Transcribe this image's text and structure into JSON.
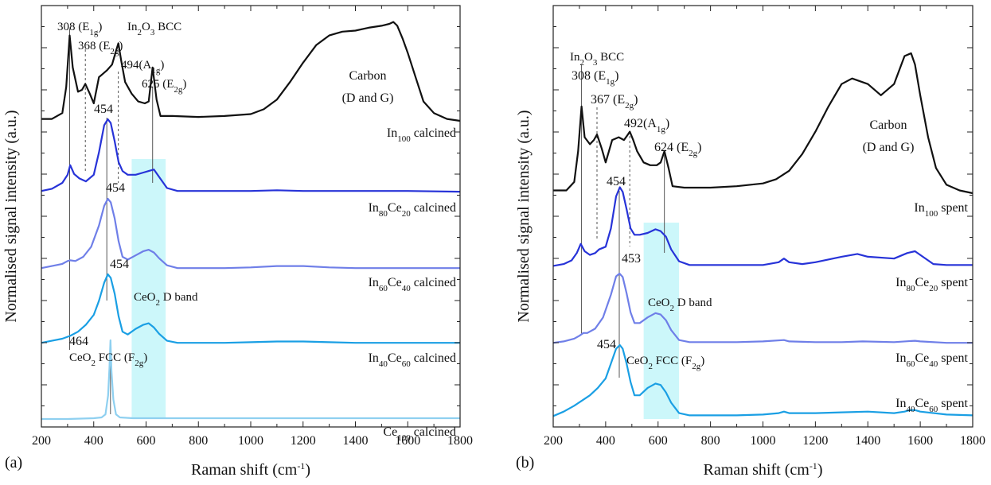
{
  "chart_data": [
    {
      "type": "line",
      "panel_label": "(a)",
      "xlabel": "Raman shift (cm",
      "xlabel_sup": "-1",
      "xlabel_end": ")",
      "ylabel": "Normalised signal intensity (a.u.)",
      "xlim": [
        200,
        1800
      ],
      "xticks": [
        "200",
        "400",
        "600",
        "800",
        "1000",
        "1200",
        "1400",
        "1600",
        "1800"
      ],
      "grid": false,
      "d_band_region": [
        545,
        675
      ],
      "d_band_label": "CeO",
      "d_band_sub": "2",
      "d_band_label_end": " D band",
      "series": [
        {
          "name": "In100 calcined",
          "label_parts": [
            [
              "In",
              ""
            ],
            [
              "100",
              "sub"
            ],
            [
              " calcined",
              ""
            ]
          ],
          "color": "#111111",
          "x": [
            200,
            240,
            280,
            295,
            308,
            320,
            340,
            355,
            368,
            385,
            400,
            420,
            450,
            470,
            485,
            494,
            505,
            520,
            545,
            570,
            595,
            610,
            625,
            640,
            655,
            700,
            800,
            900,
            1000,
            1050,
            1100,
            1150,
            1200,
            1250,
            1300,
            1350,
            1400,
            1450,
            1500,
            1530,
            1545,
            1560,
            1580,
            1600,
            1630,
            1660,
            1700,
            1750,
            1800
          ],
          "y": [
            0.02,
            0.02,
            0.08,
            0.35,
            0.88,
            0.55,
            0.3,
            0.32,
            0.38,
            0.28,
            0.18,
            0.45,
            0.52,
            0.58,
            0.72,
            0.8,
            0.62,
            0.4,
            0.28,
            0.2,
            0.18,
            0.2,
            0.55,
            0.22,
            0.05,
            0.05,
            0.04,
            0.05,
            0.07,
            0.12,
            0.22,
            0.4,
            0.6,
            0.78,
            0.88,
            0.92,
            0.93,
            0.96,
            0.98,
            1.0,
            1.02,
            0.98,
            0.85,
            0.7,
            0.45,
            0.2,
            0.08,
            0.02,
            0.0
          ]
        },
        {
          "name": "In80Ce20 calcined",
          "label_parts": [
            [
              "In",
              ""
            ],
            [
              "80",
              "sub"
            ],
            [
              "Ce",
              ""
            ],
            [
              "20",
              "sub"
            ],
            [
              " calcined",
              ""
            ]
          ],
          "color": "#2733d8",
          "x": [
            200,
            240,
            280,
            300,
            310,
            325,
            345,
            370,
            400,
            420,
            440,
            454,
            465,
            480,
            495,
            510,
            530,
            560,
            590,
            610,
            630,
            650,
            680,
            720,
            800,
            900,
            1000,
            1100,
            1200,
            1400,
            1600,
            1800
          ],
          "y": [
            0.03,
            0.06,
            0.14,
            0.25,
            0.38,
            0.26,
            0.2,
            0.16,
            0.25,
            0.55,
            0.92,
            1.0,
            0.95,
            0.7,
            0.42,
            0.3,
            0.25,
            0.25,
            0.28,
            0.3,
            0.32,
            0.22,
            0.07,
            0.03,
            0.03,
            0.03,
            0.03,
            0.04,
            0.03,
            0.03,
            0.03,
            0.02
          ]
        },
        {
          "name": "In60Ce40 calcined",
          "label_parts": [
            [
              "In",
              ""
            ],
            [
              "60",
              "sub"
            ],
            [
              "Ce",
              ""
            ],
            [
              "40",
              "sub"
            ],
            [
              " calcined",
              ""
            ]
          ],
          "color": "#6f7fe8",
          "x": [
            200,
            240,
            280,
            300,
            310,
            330,
            360,
            390,
            420,
            440,
            454,
            465,
            480,
            495,
            510,
            530,
            560,
            590,
            610,
            630,
            650,
            680,
            720,
            800,
            900,
            1000,
            1100,
            1200,
            1300,
            1400,
            1600,
            1800
          ],
          "y": [
            0.02,
            0.05,
            0.08,
            0.12,
            0.13,
            0.12,
            0.18,
            0.32,
            0.62,
            0.9,
            1.0,
            0.95,
            0.72,
            0.4,
            0.18,
            0.14,
            0.2,
            0.26,
            0.28,
            0.24,
            0.16,
            0.06,
            0.02,
            0.02,
            0.02,
            0.03,
            0.05,
            0.05,
            0.03,
            0.02,
            0.02,
            0.02
          ]
        },
        {
          "name": "In40Ce60 calcined",
          "label_parts": [
            [
              "In",
              ""
            ],
            [
              "40",
              "sub"
            ],
            [
              "Ce",
              ""
            ],
            [
              "60",
              "sub"
            ],
            [
              " calcined",
              ""
            ]
          ],
          "color": "#1a9fe4",
          "x": [
            200,
            240,
            280,
            310,
            340,
            370,
            400,
            420,
            440,
            454,
            465,
            480,
            495,
            510,
            530,
            560,
            590,
            610,
            630,
            650,
            680,
            720,
            800,
            900,
            1000,
            1100,
            1200,
            1300,
            1400,
            1600,
            1800
          ],
          "y": [
            0.02,
            0.05,
            0.08,
            0.12,
            0.18,
            0.28,
            0.42,
            0.62,
            0.88,
            1.0,
            0.95,
            0.72,
            0.4,
            0.18,
            0.14,
            0.22,
            0.28,
            0.3,
            0.24,
            0.15,
            0.05,
            0.02,
            0.02,
            0.02,
            0.03,
            0.04,
            0.04,
            0.03,
            0.02,
            0.02,
            0.02
          ]
        },
        {
          "name": "Ce100 calcined",
          "label_parts": [
            [
              "Ce",
              ""
            ],
            [
              "100",
              "sub"
            ],
            [
              " calcined",
              ""
            ]
          ],
          "color": "#8fd0f0",
          "x": [
            200,
            300,
            400,
            430,
            445,
            455,
            460,
            464,
            468,
            475,
            485,
            500,
            550,
            600,
            800,
            1000,
            1200,
            1400,
            1600,
            1800
          ],
          "y": [
            0.0,
            0.0,
            0.01,
            0.02,
            0.06,
            0.3,
            0.65,
            1.0,
            0.6,
            0.25,
            0.06,
            0.02,
            0.01,
            0.01,
            0.01,
            0.01,
            0.01,
            0.01,
            0.01,
            0.01
          ]
        }
      ],
      "annotations": [
        {
          "text": "308",
          "mode": "E1g"
        },
        {
          "text": "In2O3 BCC"
        },
        {
          "text": "368",
          "mode": "E2g"
        },
        {
          "text": "494",
          "mode": "A1g"
        },
        {
          "text": "625",
          "mode": "E2g"
        },
        {
          "text": "Carbon"
        },
        {
          "text": "(D and G)"
        },
        {
          "text": "454"
        },
        {
          "text": "454"
        },
        {
          "text": "454"
        },
        {
          "text": "464"
        },
        {
          "text": "CeO2 FCC",
          "mode": "F2g"
        }
      ]
    },
    {
      "type": "line",
      "panel_label": "(b)",
      "xlabel": "Raman shift (cm",
      "xlabel_sup": "-1",
      "xlabel_end": ")",
      "ylabel": "Normalised signal intensity (a.u.)",
      "xlim": [
        200,
        1800
      ],
      "xticks": [
        "200",
        "400",
        "600",
        "800",
        "1000",
        "1200",
        "1400",
        "1600",
        "1800"
      ],
      "grid": false,
      "d_band_region": [
        545,
        680
      ],
      "d_band_label": "CeO",
      "d_band_sub": "2",
      "d_band_label_end": " D band",
      "series": [
        {
          "name": "In100 spent",
          "label_parts": [
            [
              "In",
              ""
            ],
            [
              "100",
              "sub"
            ],
            [
              " spent",
              ""
            ]
          ],
          "color": "#111111",
          "x": [
            200,
            250,
            280,
            295,
            308,
            320,
            340,
            355,
            367,
            385,
            400,
            425,
            450,
            470,
            485,
            492,
            505,
            520,
            545,
            570,
            595,
            610,
            624,
            640,
            655,
            700,
            800,
            900,
            1000,
            1050,
            1100,
            1150,
            1200,
            1250,
            1300,
            1340,
            1370,
            1400,
            1450,
            1500,
            1540,
            1565,
            1580,
            1600,
            1630,
            1660,
            1700,
            1750,
            1800
          ],
          "y": [
            0.02,
            0.02,
            0.08,
            0.3,
            0.62,
            0.4,
            0.35,
            0.38,
            0.42,
            0.32,
            0.22,
            0.38,
            0.4,
            0.38,
            0.42,
            0.44,
            0.38,
            0.3,
            0.22,
            0.2,
            0.2,
            0.22,
            0.3,
            0.18,
            0.05,
            0.04,
            0.04,
            0.05,
            0.07,
            0.1,
            0.16,
            0.28,
            0.44,
            0.62,
            0.78,
            0.82,
            0.8,
            0.78,
            0.7,
            0.78,
            0.98,
            1.0,
            0.92,
            0.7,
            0.4,
            0.18,
            0.06,
            0.02,
            0.0
          ]
        },
        {
          "name": "In80Ce20 spent",
          "label_parts": [
            [
              "In",
              ""
            ],
            [
              "80",
              "sub"
            ],
            [
              "Ce",
              ""
            ],
            [
              "20",
              "sub"
            ],
            [
              " spent",
              ""
            ]
          ],
          "color": "#2733d8",
          "x": [
            200,
            240,
            270,
            290,
            305,
            320,
            340,
            360,
            375,
            400,
            420,
            440,
            454,
            465,
            480,
            495,
            510,
            530,
            560,
            590,
            610,
            630,
            650,
            680,
            720,
            800,
            900,
            1000,
            1060,
            1080,
            1100,
            1150,
            1200,
            1300,
            1360,
            1400,
            1500,
            1550,
            1580,
            1600,
            1650,
            1700,
            1800
          ],
          "y": [
            0.04,
            0.06,
            0.1,
            0.18,
            0.28,
            0.2,
            0.16,
            0.18,
            0.22,
            0.25,
            0.45,
            0.8,
            0.9,
            0.85,
            0.66,
            0.45,
            0.38,
            0.38,
            0.4,
            0.44,
            0.42,
            0.36,
            0.22,
            0.09,
            0.05,
            0.05,
            0.05,
            0.05,
            0.08,
            0.12,
            0.08,
            0.06,
            0.08,
            0.14,
            0.17,
            0.14,
            0.12,
            0.18,
            0.2,
            0.16,
            0.06,
            0.05,
            0.05
          ]
        },
        {
          "name": "In60Ce40 spent",
          "label_parts": [
            [
              "In",
              ""
            ],
            [
              "60",
              "sub"
            ],
            [
              "Ce",
              ""
            ],
            [
              "40",
              "sub"
            ],
            [
              " spent",
              ""
            ]
          ],
          "color": "#6f7fe8",
          "x": [
            200,
            240,
            280,
            300,
            315,
            330,
            360,
            390,
            420,
            440,
            453,
            465,
            480,
            495,
            510,
            530,
            560,
            590,
            610,
            630,
            650,
            680,
            720,
            800,
            900,
            1000,
            1080,
            1100,
            1200,
            1300,
            1380,
            1500,
            1580,
            1600,
            1700,
            1800
          ],
          "y": [
            0.02,
            0.04,
            0.08,
            0.12,
            0.16,
            0.16,
            0.22,
            0.38,
            0.7,
            0.96,
            1.0,
            0.95,
            0.72,
            0.45,
            0.3,
            0.3,
            0.38,
            0.44,
            0.42,
            0.34,
            0.2,
            0.06,
            0.03,
            0.03,
            0.03,
            0.04,
            0.06,
            0.04,
            0.03,
            0.03,
            0.04,
            0.03,
            0.05,
            0.04,
            0.02,
            0.02
          ]
        },
        {
          "name": "In40Ce60 spent",
          "label_parts": [
            [
              "In",
              ""
            ],
            [
              "40",
              "sub"
            ],
            [
              "Ce",
              ""
            ],
            [
              "60",
              "sub"
            ],
            [
              " spent",
              ""
            ]
          ],
          "color": "#1a9fe4",
          "x": [
            200,
            240,
            280,
            310,
            340,
            370,
            400,
            420,
            440,
            454,
            465,
            480,
            495,
            510,
            530,
            560,
            590,
            610,
            630,
            650,
            680,
            720,
            800,
            900,
            1000,
            1060,
            1080,
            1100,
            1200,
            1300,
            1400,
            1500,
            1540,
            1560,
            1580,
            1600,
            1700,
            1800
          ],
          "y": [
            0.04,
            0.1,
            0.18,
            0.25,
            0.32,
            0.42,
            0.55,
            0.75,
            0.95,
            1.0,
            0.95,
            0.75,
            0.5,
            0.32,
            0.32,
            0.42,
            0.48,
            0.46,
            0.36,
            0.22,
            0.08,
            0.05,
            0.05,
            0.05,
            0.06,
            0.08,
            0.1,
            0.08,
            0.08,
            0.09,
            0.1,
            0.08,
            0.1,
            0.12,
            0.12,
            0.1,
            0.06,
            0.05
          ]
        }
      ],
      "annotations": [
        {
          "text": "In2O3 BCC"
        },
        {
          "text": "308",
          "mode": "E1g"
        },
        {
          "text": "367",
          "mode": "E2g"
        },
        {
          "text": "492",
          "mode": "A1g"
        },
        {
          "text": "624",
          "mode": "E2g"
        },
        {
          "text": "Carbon"
        },
        {
          "text": "(D and G)"
        },
        {
          "text": "454"
        },
        {
          "text": "453"
        },
        {
          "text": "454"
        },
        {
          "text": "CeO2 FCC",
          "mode": "F2g"
        }
      ]
    }
  ]
}
